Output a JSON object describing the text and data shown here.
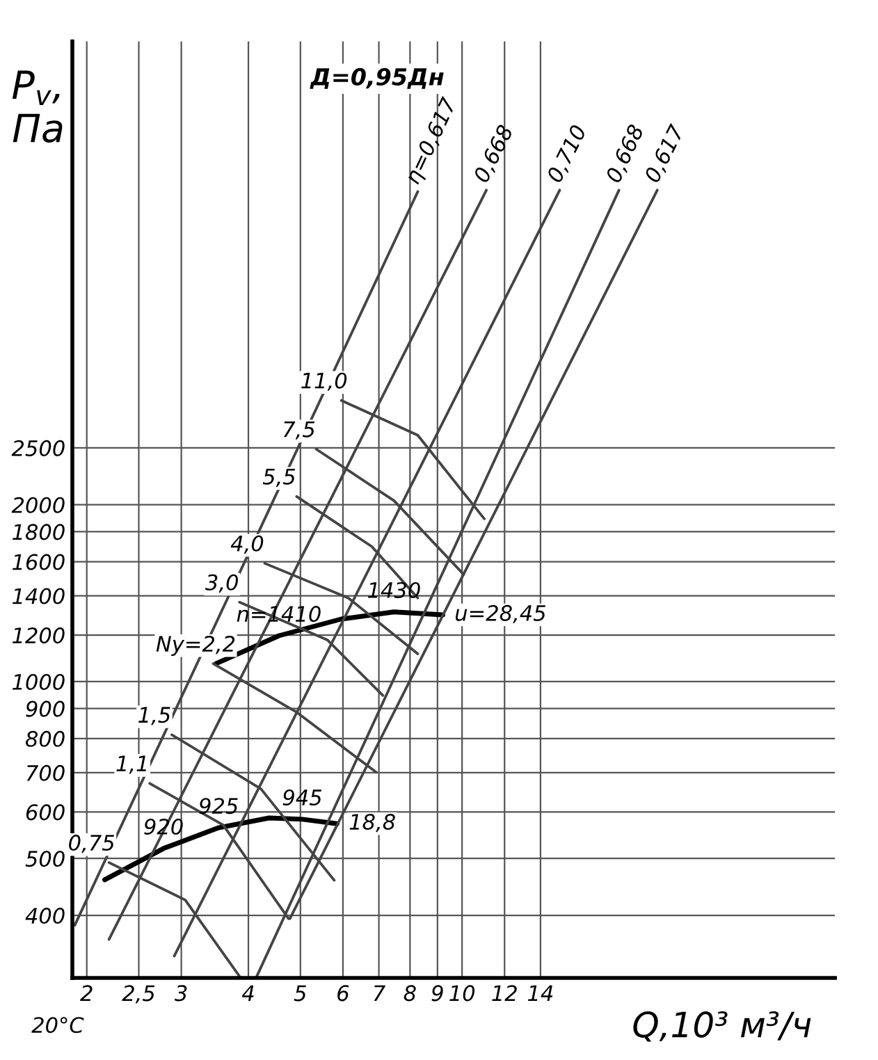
{
  "chart_data": {
    "type": "line",
    "title": "Д=0,95Дн",
    "xlabel": "Q,10³ м³/ч",
    "ylabel": "P$_{v}$,\nПа",
    "log": "xy",
    "grid": true,
    "legend": false,
    "marker": "none",
    "line_style": "solid",
    "xlim": [
      1.88,
      49.5
    ],
    "ylim": [
      313,
      12300
    ],
    "xticks": [
      2,
      {
        "value": 2.5,
        "label": "2,5"
      },
      3,
      4,
      5,
      6,
      7,
      8,
      9,
      10,
      12,
      14
    ],
    "yticks": [
      400,
      500,
      600,
      700,
      800,
      900,
      1000,
      1200,
      1400,
      1600,
      1800,
      2000,
      2500
    ],
    "series": [
      {
        "color": "#000000",
        "x": [
          2.16,
          2.78,
          3.52,
          4.37,
          5.04,
          5.85
        ],
        "values": [
          460,
          520,
          564,
          586,
          583,
          573
        ]
      },
      {
        "color": "#000000",
        "x": [
          3.48,
          4.56,
          5.96,
          7.47,
          9.21
        ],
        "values": [
          1073,
          1197,
          1278,
          1314,
          1299
        ]
      },
      {
        "name": "η=0,617",
        "color": "#444444",
        "x": [
          1.9,
          8.27
        ],
        "values": [
          385,
          6826
        ]
      },
      {
        "name": "0,668",
        "color": "#444444",
        "x": [
          2.2,
          11.1
        ],
        "values": [
          364,
          6865
        ]
      },
      {
        "name": "0,710",
        "color": "#444444",
        "x": [
          2.91,
          15.2
        ],
        "values": [
          341,
          6865
        ]
      },
      {
        "name": "0,668",
        "color": "#444444",
        "x": [
          4.14,
          19.6
        ],
        "values": [
          314,
          6865
        ]
      },
      {
        "name": "0,617",
        "color": "#444444",
        "x": [
          4.78,
          23.1
        ],
        "values": [
          395,
          6865
        ]
      },
      {
        "name": "0,75",
        "color": "#444444",
        "x": [
          2.2,
          3.05,
          3.87
        ],
        "values": [
          492,
          425,
          313
        ]
      },
      {
        "name": "1,1",
        "color": "#444444",
        "x": [
          2.62,
          3.59,
          4.75
        ],
        "values": [
          671,
          570,
          395
        ]
      },
      {
        "name": "1,5",
        "color": "#444444",
        "x": [
          2.88,
          4.22,
          5.78
        ],
        "values": [
          812,
          657,
          459
        ]
      },
      {
        "name": "Ny=2,2",
        "color": "#444444",
        "x": [
          3.44,
          4.92,
          6.92
        ],
        "values": [
          1073,
          887,
          701
        ]
      },
      {
        "name": "3,0",
        "color": "#444444",
        "x": [
          3.85,
          5.61,
          7.12
        ],
        "values": [
          1365,
          1178,
          947
        ]
      },
      {
        "name": "4,0",
        "color": "#444444",
        "x": [
          4.29,
          6.14,
          8.27
        ],
        "values": [
          1590,
          1388,
          1115
        ]
      },
      {
        "name": "5,5",
        "color": "#444444",
        "x": [
          4.92,
          6.79,
          8.27
        ],
        "values": [
          2066,
          1698,
          1388
        ]
      },
      {
        "name": "7,5",
        "color": "#444444",
        "x": [
          5.35,
          7.47,
          10.07
        ],
        "values": [
          2487,
          2032,
          1522
        ]
      },
      {
        "name": "11,0",
        "color": "#444444",
        "x": [
          5.96,
          8.27,
          11.0
        ],
        "values": [
          3010,
          2627,
          1893
        ]
      }
    ],
    "annotations": [
      {
        "text": "n=1410",
        "x": 4.56,
        "y": 1197
      },
      {
        "text": "1430",
        "x": 7.47,
        "y": 1314
      },
      {
        "text": "u=28,45",
        "x": 9.21,
        "y": 1299
      },
      {
        "text": "920",
        "x": 2.78,
        "y": 520
      },
      {
        "text": "925",
        "x": 3.52,
        "y": 564
      },
      {
        "text": "945",
        "x": 5.04,
        "y": 583
      },
      {
        "text": "18,8",
        "x": 5.85,
        "y": 573
      },
      "20°C"
    ]
  }
}
